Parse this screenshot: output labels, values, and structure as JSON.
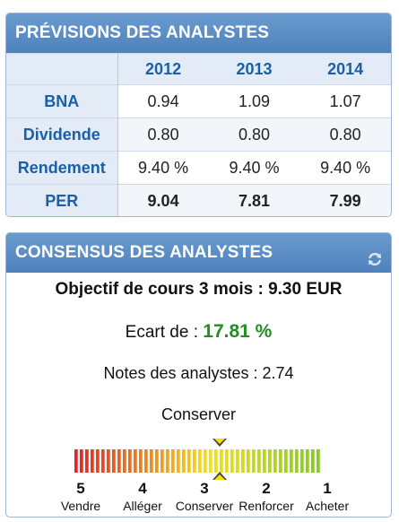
{
  "forecast": {
    "title": "PRÉVISIONS DES ANALYSTES",
    "years": [
      "2012",
      "2013",
      "2014"
    ],
    "rows": [
      {
        "label": "BNA",
        "values": [
          "0.94",
          "1.09",
          "1.07"
        ]
      },
      {
        "label": "Dividende",
        "values": [
          "0.80",
          "0.80",
          "0.80"
        ]
      },
      {
        "label": "Rendement",
        "values": [
          "9.40 %",
          "9.40 %",
          "9.40 %"
        ]
      },
      {
        "label": "PER",
        "values": [
          "9.04",
          "7.81",
          "7.99"
        ]
      }
    ]
  },
  "consensus": {
    "title": "CONSENSUS DES ANALYSTES",
    "refresh_icon": "refresh-icon",
    "objectif": "Objectif de cours 3 mois : 9.30 EUR",
    "ecart_label": "Ecart de :",
    "ecart_value": "17.81 %",
    "notes": "Notes des analystes : 2.74",
    "recommendation": "Conserver",
    "score": 2.74,
    "scale": [
      {
        "num": "5",
        "label": "Vendre"
      },
      {
        "num": "4",
        "label": "Alléger"
      },
      {
        "num": "3",
        "label": "Conserver"
      },
      {
        "num": "2",
        "label": "Renforcer"
      },
      {
        "num": "1",
        "label": "Acheter"
      }
    ],
    "colors": {
      "accent": "#1f8f1f",
      "header": "#5c8fc6",
      "marker": "#f4e200"
    }
  }
}
